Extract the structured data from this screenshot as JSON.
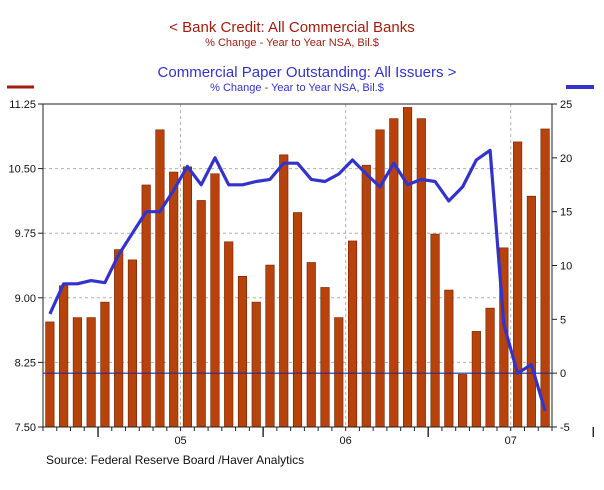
{
  "title_left": {
    "text": "<  Bank Credit: All Commercial Banks",
    "subtitle": "% Change - Year to Year        NSA, Bil.$"
  },
  "title_right": {
    "text": "Commercial Paper Outstanding: All Issuers  >",
    "subtitle": "% Change - Year to Year        NSA, Bil.$"
  },
  "source": "Source:  Federal Reserve Board /Haver Analytics",
  "colors": {
    "bar": "#b8420b",
    "bar_edge": "#6e2000",
    "line": "#3333cc",
    "left_axis": "#a31c12",
    "right_axis": "#3333cc"
  },
  "chart_data": {
    "type": "bar",
    "left_axis": {
      "ticks": [
        "11.25",
        "10.50",
        "9.75",
        "9.00",
        "8.25",
        "7.50"
      ],
      "tick_values": [
        11.25,
        10.5,
        9.75,
        9.0,
        8.25,
        7.5
      ],
      "range": [
        7.5,
        11.25
      ]
    },
    "right_axis": {
      "ticks": [
        "25",
        "20",
        "15",
        "10",
        "5",
        "0",
        "-5"
      ],
      "tick_values": [
        25,
        20,
        15,
        10,
        5,
        0,
        -5
      ],
      "range": [
        -5,
        25
      ]
    },
    "x_labels": [
      {
        "label": "05",
        "month_index": 10
      },
      {
        "label": "06",
        "month_index": 22
      },
      {
        "label": "07",
        "month_index": 34
      }
    ],
    "year_boundaries": [
      4,
      16,
      28,
      40
    ],
    "series": [
      {
        "type": "bar",
        "axis": "left",
        "values": [
          8.72,
          9.14,
          8.77,
          8.77,
          8.95,
          9.56,
          9.44,
          10.31,
          10.95,
          10.46,
          10.52,
          10.13,
          10.44,
          9.65,
          9.25,
          8.95,
          9.38,
          10.66,
          9.99,
          9.41,
          9.12,
          8.77,
          9.66,
          10.54,
          10.95,
          11.08,
          11.21,
          11.08,
          9.74,
          9.09,
          8.11,
          8.61,
          8.88,
          9.58,
          10.81,
          10.18,
          10.96
        ]
      },
      {
        "type": "line",
        "axis": "right",
        "values": [
          5.5,
          8.3,
          8.3,
          8.6,
          8.4,
          11,
          13,
          15,
          15,
          17,
          19.2,
          17.5,
          20,
          17.5,
          17.5,
          17.8,
          18,
          19.5,
          19.5,
          18,
          17.8,
          18.5,
          19.8,
          18.5,
          17.3,
          19.5,
          17.5,
          18,
          17.8,
          16,
          17.3,
          19.8,
          20.7,
          4.5,
          0,
          0.8,
          -3.5
        ]
      }
    ]
  }
}
